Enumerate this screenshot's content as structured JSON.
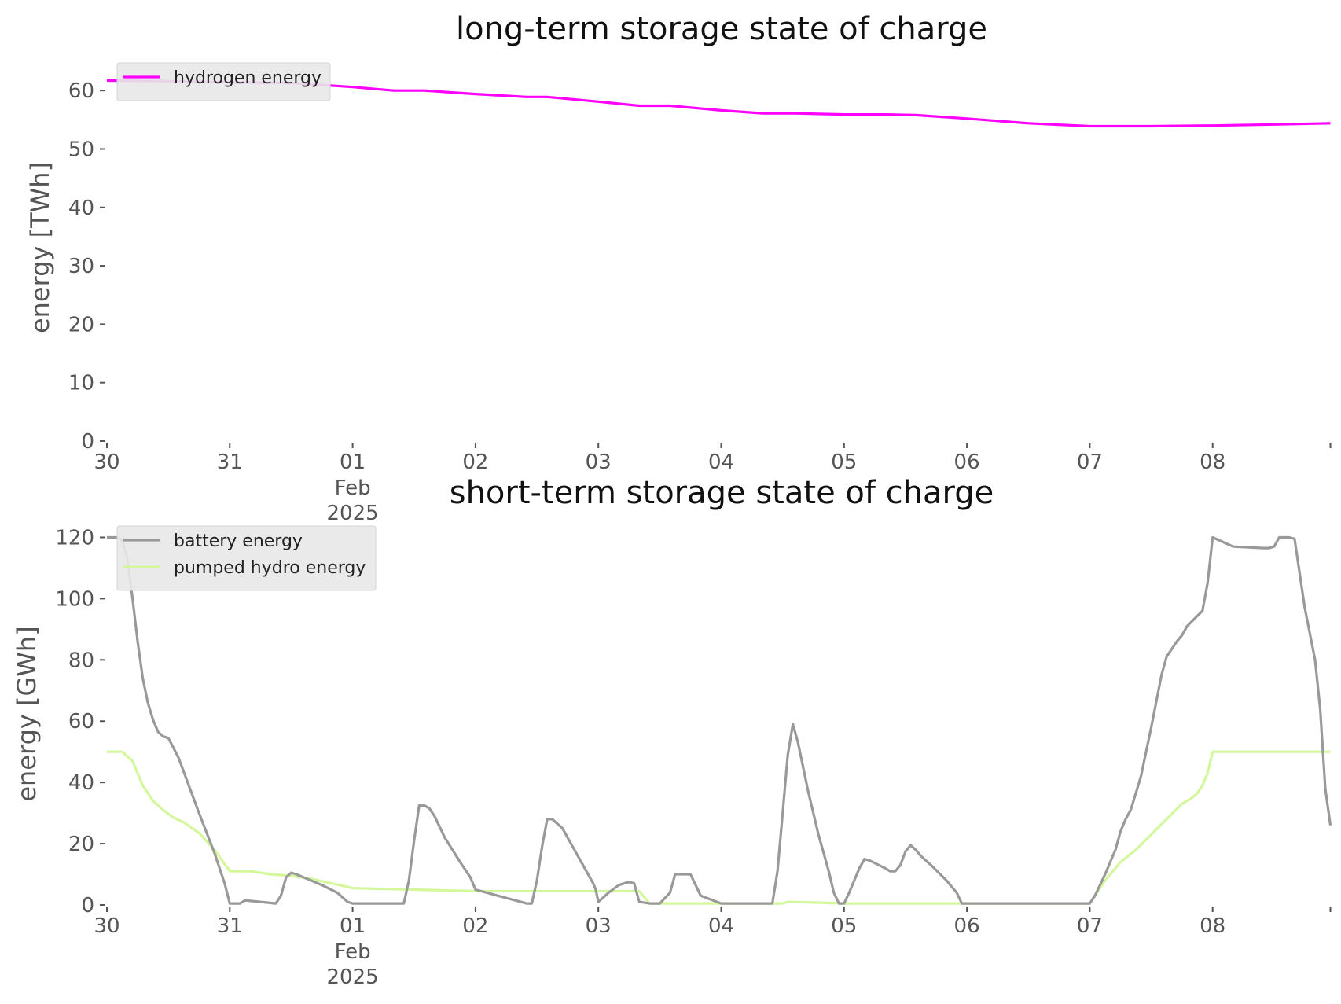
{
  "chart_data": [
    {
      "type": "line",
      "title": "long-term storage state of charge",
      "xlabel": "",
      "ylabel": "energy [TWh]",
      "xlim": [
        "2025-01-30T00:00",
        "2025-02-08T23:00"
      ],
      "ylim": [
        0,
        65
      ],
      "y_ticks": [
        "0",
        "10",
        "20",
        "30",
        "40",
        "50",
        "60"
      ],
      "x_ticks": [
        {
          "date": "2025-01-30",
          "label": "30"
        },
        {
          "date": "2025-01-31",
          "label": "31"
        },
        {
          "date": "2025-02-01",
          "label": "01",
          "label2": "Feb",
          "label3": "2025"
        },
        {
          "date": "2025-02-02",
          "label": "02"
        },
        {
          "date": "2025-02-03",
          "label": "03"
        },
        {
          "date": "2025-02-04",
          "label": "04"
        },
        {
          "date": "2025-02-05",
          "label": "05"
        },
        {
          "date": "2025-02-06",
          "label": "06"
        },
        {
          "date": "2025-02-07",
          "label": "07"
        },
        {
          "date": "2025-02-08",
          "label": "08"
        }
      ],
      "grid": false,
      "legend": "top-left",
      "series": [
        {
          "name": "hydrogen energy",
          "color": "#ff00ff",
          "x": [
            "2025-01-30T00:00",
            "2025-01-30T12:00",
            "2025-01-31T00:00",
            "2025-01-31T12:00",
            "2025-02-01T00:00",
            "2025-02-01T08:00",
            "2025-02-01T14:00",
            "2025-02-02T00:00",
            "2025-02-02T10:00",
            "2025-02-02T14:00",
            "2025-02-03T00:00",
            "2025-02-03T08:00",
            "2025-02-03T14:00",
            "2025-02-04T00:00",
            "2025-02-04T08:00",
            "2025-02-04T14:00",
            "2025-02-05T00:00",
            "2025-02-05T08:00",
            "2025-02-05T14:00",
            "2025-02-06T00:00",
            "2025-02-06T12:00",
            "2025-02-07T00:00",
            "2025-02-07T12:00",
            "2025-02-08T00:00",
            "2025-02-08T12:00",
            "2025-02-08T23:00"
          ],
          "values": [
            61.7,
            61.6,
            61.4,
            61.3,
            60.6,
            60.0,
            60.0,
            59.4,
            58.9,
            58.9,
            58.1,
            57.4,
            57.4,
            56.6,
            56.1,
            56.1,
            55.9,
            55.9,
            55.8,
            55.2,
            54.4,
            53.9,
            53.9,
            54.0,
            54.2,
            54.4
          ]
        }
      ]
    },
    {
      "type": "line",
      "title": "short-term storage state of charge",
      "xlabel": "",
      "ylabel": "energy [GWh]",
      "xlim": [
        "2025-01-30T00:00",
        "2025-02-08T23:00"
      ],
      "ylim": [
        0,
        125
      ],
      "y_ticks": [
        "0",
        "20",
        "40",
        "60",
        "80",
        "100",
        "120"
      ],
      "x_ticks": [
        {
          "date": "2025-01-30",
          "label": "30"
        },
        {
          "date": "2025-01-31",
          "label": "31"
        },
        {
          "date": "2025-02-01",
          "label": "01",
          "label2": "Feb",
          "label3": "2025"
        },
        {
          "date": "2025-02-02",
          "label": "02"
        },
        {
          "date": "2025-02-03",
          "label": "03"
        },
        {
          "date": "2025-02-04",
          "label": "04"
        },
        {
          "date": "2025-02-05",
          "label": "05"
        },
        {
          "date": "2025-02-06",
          "label": "06"
        },
        {
          "date": "2025-02-07",
          "label": "07"
        },
        {
          "date": "2025-02-08",
          "label": "08"
        }
      ],
      "grid": false,
      "legend": "top-left",
      "series": [
        {
          "name": "battery energy",
          "color": "#999999",
          "x": [
            "2025-01-30T00:00",
            "2025-01-30T02:00",
            "2025-01-30T03:00",
            "2025-01-30T04:00",
            "2025-01-30T05:00",
            "2025-01-30T06:00",
            "2025-01-30T07:00",
            "2025-01-30T08:00",
            "2025-01-30T09:00",
            "2025-01-30T10:00",
            "2025-01-30T11:00",
            "2025-01-30T12:00",
            "2025-01-30T14:00",
            "2025-01-30T16:00",
            "2025-01-30T18:00",
            "2025-01-30T21:00",
            "2025-01-30T23:00",
            "2025-01-31T00:00",
            "2025-01-31T02:00",
            "2025-01-31T03:00",
            "2025-01-31T06:00",
            "2025-01-31T09:00",
            "2025-01-31T10:00",
            "2025-01-31T11:00",
            "2025-01-31T12:00",
            "2025-01-31T13:00",
            "2025-01-31T18:00",
            "2025-01-31T21:00",
            "2025-01-31T23:00",
            "2025-02-01T00:00",
            "2025-02-01T10:00",
            "2025-02-01T11:00",
            "2025-02-01T12:00",
            "2025-02-01T13:00",
            "2025-02-01T14:00",
            "2025-02-01T15:00",
            "2025-02-01T16:00",
            "2025-02-01T18:00",
            "2025-02-01T21:00",
            "2025-02-01T23:00",
            "2025-02-02T00:00",
            "2025-02-02T10:00",
            "2025-02-02T11:00",
            "2025-02-02T12:00",
            "2025-02-02T13:00",
            "2025-02-02T14:00",
            "2025-02-02T15:00",
            "2025-02-02T17:00",
            "2025-02-02T19:00",
            "2025-02-02T21:00",
            "2025-02-02T23:00",
            "2025-02-02T23:30",
            "2025-02-03T00:00",
            "2025-02-03T02:00",
            "2025-02-03T04:00",
            "2025-02-03T05:00",
            "2025-02-03T06:00",
            "2025-02-03T07:00",
            "2025-02-03T08:00",
            "2025-02-03T10:00",
            "2025-02-03T12:00",
            "2025-02-03T14:00",
            "2025-02-03T15:00",
            "2025-02-03T18:00",
            "2025-02-03T20:00",
            "2025-02-04T00:00",
            "2025-02-04T10:00",
            "2025-02-04T11:00",
            "2025-02-04T12:00",
            "2025-02-04T13:00",
            "2025-02-04T14:00",
            "2025-02-04T15:00",
            "2025-02-04T17:00",
            "2025-02-04T19:00",
            "2025-02-04T21:00",
            "2025-02-04T22:00",
            "2025-02-04T23:00",
            "2025-02-05T00:00",
            "2025-02-05T01:00",
            "2025-02-05T03:00",
            "2025-02-05T04:00",
            "2025-02-05T05:00",
            "2025-02-05T08:00",
            "2025-02-05T09:00",
            "2025-02-05T10:00",
            "2025-02-05T11:00",
            "2025-02-05T12:00",
            "2025-02-05T13:00",
            "2025-02-05T14:00",
            "2025-02-05T15:00",
            "2025-02-05T17:00",
            "2025-02-05T20:00",
            "2025-02-05T22:00",
            "2025-02-05T23:00",
            "2025-02-06T00:00",
            "2025-02-07T00:00",
            "2025-02-07T01:00",
            "2025-02-07T03:00",
            "2025-02-07T05:00",
            "2025-02-07T06:00",
            "2025-02-07T07:00",
            "2025-02-07T08:00",
            "2025-02-07T10:00",
            "2025-02-07T12:00",
            "2025-02-07T14:00",
            "2025-02-07T15:00",
            "2025-02-07T17:00",
            "2025-02-07T18:00",
            "2025-02-07T19:00",
            "2025-02-07T22:00",
            "2025-02-07T23:00",
            "2025-02-08T00:00",
            "2025-02-08T04:00",
            "2025-02-08T10:00",
            "2025-02-08T11:00",
            "2025-02-08T12:00",
            "2025-02-08T13:00",
            "2025-02-08T14:00",
            "2025-02-08T15:00",
            "2025-02-08T16:00",
            "2025-02-08T18:00",
            "2025-02-08T20:00",
            "2025-02-08T21:00",
            "2025-02-08T22:00",
            "2025-02-08T23:00"
          ],
          "values": [
            120,
            120,
            119,
            113,
            100,
            86,
            74,
            66,
            60.5,
            56.5,
            55,
            54.5,
            48,
            39,
            30,
            17,
            7,
            0.5,
            0.5,
            1.5,
            1,
            0.5,
            3,
            9,
            10.5,
            10,
            6.5,
            4,
            1,
            0.5,
            0.5,
            8,
            21,
            32.5,
            32.5,
            31.5,
            29,
            22,
            14,
            9,
            5,
            0.5,
            0.5,
            8,
            19,
            28,
            28,
            25,
            19,
            13,
            7,
            5,
            1,
            4,
            6.5,
            7,
            7.5,
            7,
            1,
            0.5,
            0.5,
            4,
            10,
            10,
            3,
            0.5,
            0.5,
            11,
            30,
            49,
            59,
            53,
            37,
            23,
            11,
            4,
            0.5,
            0.5,
            4,
            12,
            15,
            14.5,
            12,
            11,
            11,
            13,
            17.5,
            19.5,
            18,
            16,
            13,
            8,
            4,
            0.5,
            0.5,
            0.5,
            3,
            10,
            18,
            24,
            28,
            31,
            42,
            58,
            75,
            81,
            86,
            88,
            91,
            96,
            105,
            120,
            117,
            116.5,
            116.5,
            117,
            120,
            120,
            120,
            119.5,
            97,
            80,
            64,
            38,
            26
          ]
        },
        {
          "name": "pumped hydro energy",
          "color": "#d4f79c",
          "x": [
            "2025-01-30T00:00",
            "2025-01-30T02:00",
            "2025-01-30T03:00",
            "2025-01-30T05:00",
            "2025-01-30T07:00",
            "2025-01-30T09:00",
            "2025-01-30T11:00",
            "2025-01-30T13:00",
            "2025-01-30T15:00",
            "2025-01-30T18:00",
            "2025-01-30T21:00",
            "2025-01-31T00:00",
            "2025-01-31T04:00",
            "2025-01-31T08:00",
            "2025-01-31T12:00",
            "2025-01-31T16:00",
            "2025-01-31T20:00",
            "2025-02-01T00:00",
            "2025-02-01T12:00",
            "2025-02-02T00:00",
            "2025-02-03T00:00",
            "2025-02-03T06:00",
            "2025-02-03T07:00",
            "2025-02-03T08:00",
            "2025-02-03T10:00",
            "2025-02-04T00:00",
            "2025-02-04T12:00",
            "2025-02-04T13:00",
            "2025-02-04T18:00",
            "2025-02-05T00:00",
            "2025-02-06T00:00",
            "2025-02-07T00:00",
            "2025-02-07T03:00",
            "2025-02-07T06:00",
            "2025-02-07T09:00",
            "2025-02-07T12:00",
            "2025-02-07T15:00",
            "2025-02-07T18:00",
            "2025-02-07T20:00",
            "2025-02-07T21:00",
            "2025-02-07T22:00",
            "2025-02-07T23:00",
            "2025-02-08T00:00",
            "2025-02-08T23:00"
          ],
          "values": [
            50,
            50,
            50,
            47,
            39,
            34,
            31,
            28.5,
            27,
            23.5,
            18,
            11,
            11,
            10,
            9.5,
            8.5,
            7,
            5.5,
            5,
            4.5,
            4.5,
            4.5,
            4.5,
            4.5,
            0.5,
            0.5,
            0.5,
            1,
            0.8,
            0.5,
            0.5,
            0.5,
            8,
            14,
            18,
            23,
            28,
            33,
            35,
            36.5,
            39,
            43,
            50,
            50
          ]
        }
      ]
    }
  ]
}
